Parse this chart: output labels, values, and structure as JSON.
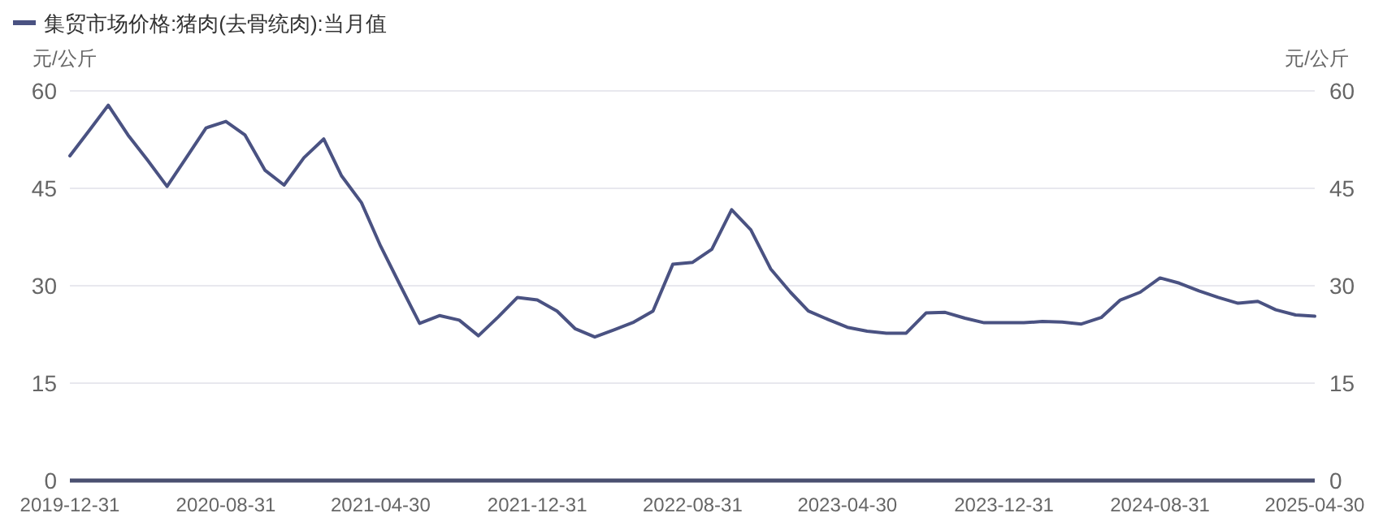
{
  "chart_data": {
    "type": "line",
    "x": [
      "2019-12-31",
      "2020-01-31",
      "2020-02-29",
      "2020-03-31",
      "2020-04-30",
      "2020-05-31",
      "2020-06-30",
      "2020-07-31",
      "2020-08-31",
      "2020-09-30",
      "2020-10-31",
      "2020-11-30",
      "2020-12-31",
      "2021-01-31",
      "2021-02-28",
      "2021-03-31",
      "2021-04-30",
      "2021-05-31",
      "2021-06-30",
      "2021-07-31",
      "2021-08-31",
      "2021-09-30",
      "2021-10-31",
      "2021-11-30",
      "2021-12-31",
      "2022-01-31",
      "2022-02-28",
      "2022-03-31",
      "2022-04-30",
      "2022-05-31",
      "2022-06-30",
      "2022-07-31",
      "2022-08-31",
      "2022-09-30",
      "2022-10-31",
      "2022-11-30",
      "2022-12-31",
      "2023-01-31",
      "2023-02-28",
      "2023-03-31",
      "2023-04-30",
      "2023-05-31",
      "2023-06-30",
      "2023-07-31",
      "2023-08-31",
      "2023-09-30",
      "2023-10-31",
      "2023-11-30",
      "2023-12-31",
      "2024-01-31",
      "2024-02-29",
      "2024-03-31",
      "2024-04-30",
      "2024-05-31",
      "2024-06-30",
      "2024-07-31",
      "2024-08-31",
      "2024-09-30",
      "2024-10-31",
      "2024-11-30",
      "2024-12-31",
      "2025-01-31",
      "2025-02-28",
      "2025-03-31",
      "2025-04-30"
    ],
    "series": [
      {
        "name": "集贸市场价格:猪肉(去骨统肉):当月值",
        "color": "#4a5282",
        "values": [
          50,
          54,
          57.8,
          53.2,
          49.4,
          45.3,
          49.7,
          54.3,
          55.3,
          53.2,
          47.8,
          45.5,
          49.7,
          52.6,
          46.9,
          42.8,
          36.1,
          30,
          24.2,
          25.4,
          24.7,
          22.3,
          25.2,
          28.2,
          27.8,
          26.1,
          23.4,
          22.1,
          23.2,
          24.4,
          26.1,
          33.3,
          33.6,
          35.6,
          41.7,
          38.6,
          32.6,
          29,
          26.1,
          24.8,
          23.6,
          23,
          22.7,
          22.7,
          25.8,
          25.9,
          25,
          24.3,
          24.3,
          24.3,
          24.5,
          24.4,
          24.1,
          25.1,
          27.8,
          29,
          31.2,
          30.4,
          29.2,
          28.2,
          27.3,
          27.6,
          26.3,
          25.5,
          25.3
        ]
      }
    ],
    "xlim": [
      "2019-12-31",
      "2025-04-30"
    ],
    "xticks": [
      "2019-12-31",
      "2020-08-31",
      "2021-04-30",
      "2021-12-31",
      "2022-08-31",
      "2023-04-30",
      "2023-12-31",
      "2024-08-31",
      "2025-04-30"
    ],
    "ylim": [
      0,
      60
    ],
    "yticks": [
      0,
      15,
      30,
      45,
      60
    ],
    "y2lim": [
      0,
      60
    ],
    "y2ticks": [
      0,
      15,
      30,
      45,
      60
    ],
    "ylabel": "元/公斤",
    "y2label": "元/公斤",
    "grid": "y",
    "legend": "top left",
    "marker": "none",
    "line_style": "solid"
  }
}
